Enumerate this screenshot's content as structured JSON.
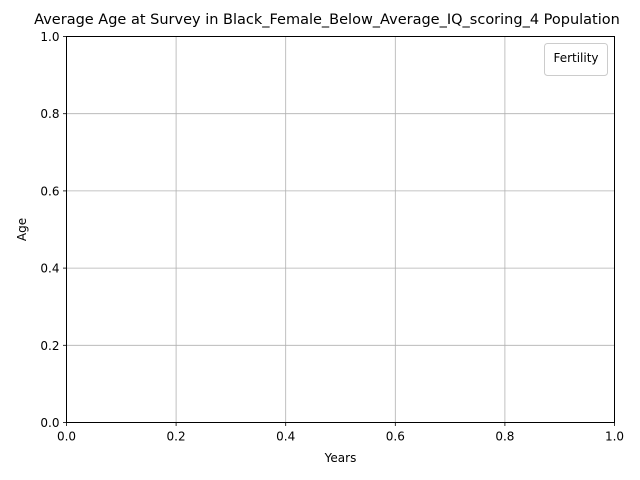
{
  "chart_data": {
    "type": "line",
    "title": "Average Age at Survey in Black_Female_Below_Average_IQ_scoring_4 Population",
    "xlabel": "Years",
    "ylabel": "Age",
    "xlim": [
      0.0,
      1.0
    ],
    "ylim": [
      0.0,
      1.0
    ],
    "x_ticks": [
      "0.0",
      "0.2",
      "0.4",
      "0.6",
      "0.8",
      "1.0"
    ],
    "y_ticks": [
      "0.0",
      "0.2",
      "0.4",
      "0.6",
      "0.8",
      "1.0"
    ],
    "grid": true,
    "legend": {
      "title": "Fertility",
      "position": "upper right",
      "entries": []
    },
    "series": []
  },
  "colors": {
    "background": "#ffffff",
    "axes_frame": "#000000",
    "grid": "#b0b0b0",
    "legend_border": "#cccccc"
  }
}
